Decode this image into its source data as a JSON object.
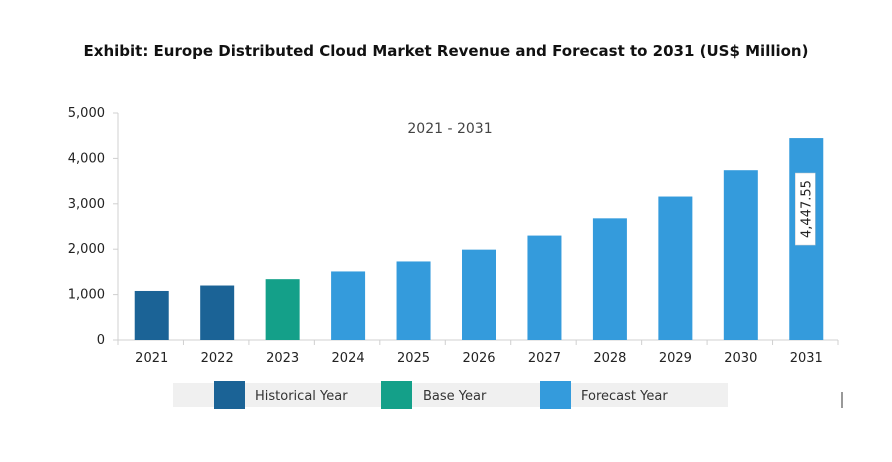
{
  "page": {
    "title": "Exhibit: Europe Distributed Cloud Market Revenue and Forecast to 2031 (US$ Million)"
  },
  "chart_data": {
    "type": "bar",
    "title": "Exhibit: Europe Distributed Cloud Market Revenue and Forecast to 2031 (US$ Million)",
    "subtitle": "2021 - 2031",
    "xlabel": "",
    "ylabel": "",
    "ylim": [
      0,
      5000
    ],
    "yticks": [
      0,
      1000,
      2000,
      3000,
      4000,
      5000
    ],
    "ytick_labels": [
      "0",
      "1,000",
      "2,000",
      "3,000",
      "4,000",
      "5,000"
    ],
    "grid": false,
    "legend_position": "bottom",
    "categories": [
      "2021",
      "2022",
      "2023",
      "2024",
      "2025",
      "2026",
      "2027",
      "2028",
      "2029",
      "2030",
      "2031"
    ],
    "values": [
      1080,
      1200,
      1340,
      1510,
      1730,
      1990,
      2300,
      2680,
      3160,
      3740,
      4447.55
    ],
    "bar_types": [
      "historical",
      "historical",
      "base",
      "forecast",
      "forecast",
      "forecast",
      "forecast",
      "forecast",
      "forecast",
      "forecast",
      "forecast"
    ],
    "data_labels": [
      {
        "index": 10,
        "text": "4,447.55"
      }
    ],
    "legend": [
      {
        "key": "historical",
        "label": "Historical Year",
        "color": "#1b6396"
      },
      {
        "key": "base",
        "label": "Base Year",
        "color": "#14a089"
      },
      {
        "key": "forecast",
        "label": "Forecast Year",
        "color": "#349bdc"
      }
    ]
  }
}
